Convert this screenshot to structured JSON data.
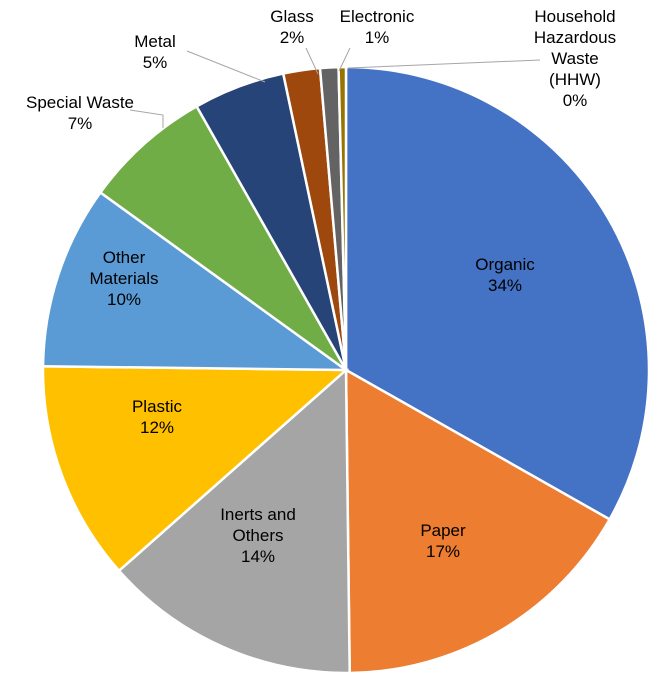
{
  "chart_data": {
    "type": "pie",
    "title": "",
    "slices": [
      {
        "name": "Organic",
        "value": 34,
        "label": "34%",
        "color": "#4472C4"
      },
      {
        "name": "Paper",
        "value": 17,
        "label": "17%",
        "color": "#ED7D31"
      },
      {
        "name": "Inerts and Others",
        "value": 14,
        "label": "14%",
        "color": "#A5A5A5"
      },
      {
        "name": "Plastic",
        "value": 12,
        "label": "12%",
        "color": "#FFC000"
      },
      {
        "name": "Other Materials",
        "value": 10,
        "label": "10%",
        "color": "#5B9BD5"
      },
      {
        "name": "Special Waste",
        "value": 7,
        "label": "7%",
        "color": "#70AD47"
      },
      {
        "name": "Metal",
        "value": 5,
        "label": "5%",
        "color": "#264478"
      },
      {
        "name": "Glass",
        "value": 2,
        "label": "2%",
        "color": "#9E480E"
      },
      {
        "name": "Electronic",
        "value": 1,
        "label": "1%",
        "color": "#636363"
      },
      {
        "name": "Household Hazardous Waste (HHW)",
        "value": 0.4,
        "label": "0%",
        "color": "#997300"
      }
    ],
    "legend": "none"
  }
}
